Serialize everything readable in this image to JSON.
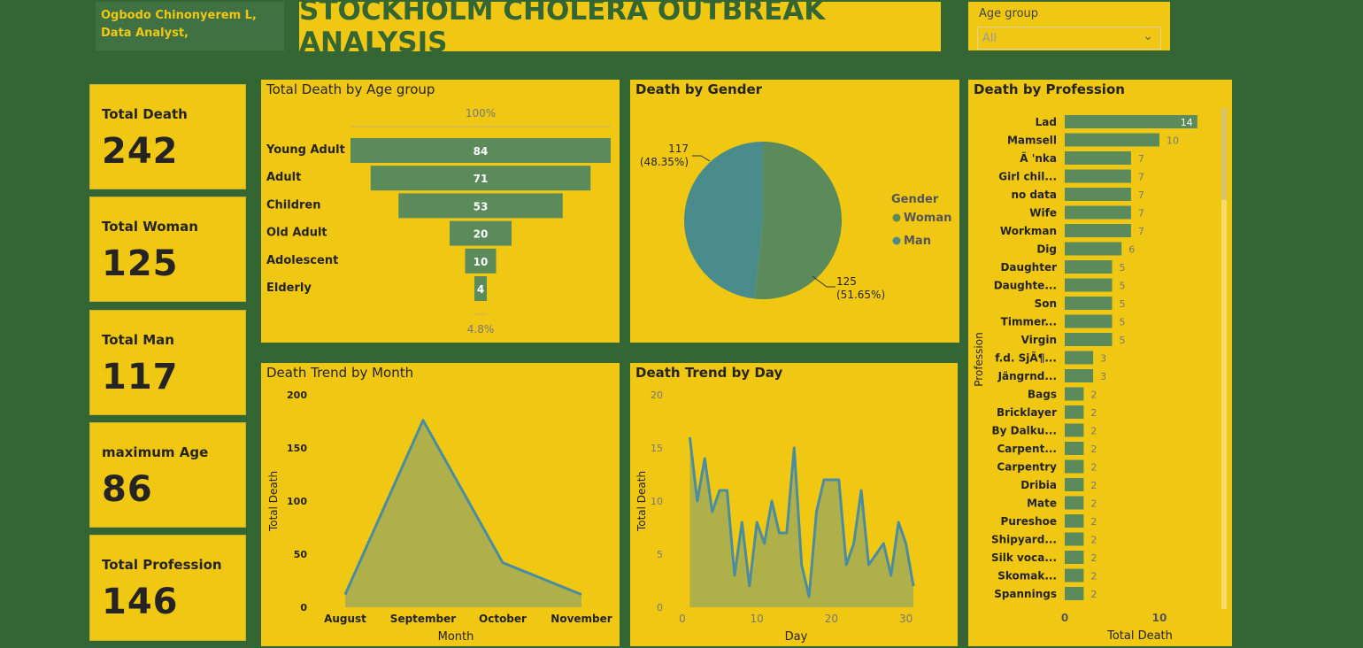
{
  "header": {
    "author_line1": "Ogbodo Chinonyerem L,",
    "author_line2": "Data Analyst,",
    "title": "STOCKHOLM CHOLERA OUTBREAK ANALYSIS"
  },
  "slicer": {
    "label": "Age group",
    "value": "All"
  },
  "cards": [
    {
      "label": "Total Death",
      "value": "242"
    },
    {
      "label": "Total Woman",
      "value": "125"
    },
    {
      "label": "Total Man",
      "value": "117"
    },
    {
      "label": "maximum Age",
      "value": "86"
    },
    {
      "label": "Total Profession",
      "value": "146"
    }
  ],
  "colors": {
    "background": "#336633",
    "panel": "#F0C814",
    "bar": "#5B8A5B",
    "man": "#4A8C8C",
    "area_fill": "#B0B04A",
    "line": "#4A8CA0"
  },
  "chart_data": [
    {
      "type": "funnel",
      "title": "Total Death by Age group",
      "top_label": "100%",
      "bottom_label": "4.8%",
      "categories": [
        "Young Adult",
        "Adult",
        "Children",
        "Old Adult",
        "Adolescent",
        "Elderly"
      ],
      "values": [
        84,
        71,
        53,
        20,
        10,
        4
      ]
    },
    {
      "type": "pie",
      "title": "Death by Gender",
      "legend_title": "Gender",
      "legend_position": "right",
      "slices": [
        {
          "name": "Woman",
          "value": 125,
          "label_value": "125",
          "label_pct": "(51.65%)"
        },
        {
          "name": "Man",
          "value": 117,
          "label_value": "117",
          "label_pct": "(48.35%)"
        }
      ]
    },
    {
      "type": "area",
      "title": "Death Trend by Month",
      "xlabel": "Month",
      "ylabel": "Total Death",
      "categories": [
        "August",
        "September",
        "October",
        "November"
      ],
      "values": [
        12,
        176,
        42,
        12
      ],
      "ylim": [
        0,
        200
      ],
      "yticks": [
        "0",
        "50",
        "100",
        "150",
        "200"
      ]
    },
    {
      "type": "area",
      "title": "Death Trend by Day",
      "xlabel": "Day",
      "ylabel": "Total Death",
      "x": [
        1,
        2,
        3,
        4,
        5,
        6,
        7,
        8,
        9,
        10,
        11,
        12,
        13,
        14,
        15,
        16,
        17,
        18,
        19,
        20,
        21,
        22,
        23,
        24,
        25,
        26,
        27,
        28,
        29,
        30,
        31
      ],
      "values": [
        16,
        10,
        14,
        9,
        11,
        11,
        3,
        8,
        2,
        8,
        6,
        10,
        7,
        7,
        15,
        4,
        1,
        9,
        12,
        12,
        12,
        4,
        6,
        11,
        4,
        5,
        6,
        3,
        8,
        6,
        2
      ],
      "xlim": [
        0,
        32
      ],
      "ylim": [
        0,
        20
      ],
      "xticks": [
        "0",
        "10",
        "20",
        "30"
      ],
      "yticks": [
        "0",
        "5",
        "10",
        "15",
        "20"
      ]
    },
    {
      "type": "bar",
      "orientation": "horizontal",
      "title": "Death by Profession",
      "xlabel": "Total Death",
      "ylabel": "Profession",
      "categories": [
        "Lad",
        "Mamsell",
        "Ã 'nka",
        "Girl chil...",
        "no data",
        "Wife",
        "Workman",
        "Dig",
        "Daughter",
        "Daughte...",
        "Son",
        "Timmer...",
        "Virgin",
        "f.d. SjÃ¶...",
        "Jängrnd...",
        "Bags",
        "Bricklayer",
        "By Dalku...",
        "Carpent...",
        "Carpentry",
        "Dribia",
        "Mate",
        "Pureshoe",
        "Shipyard...",
        "Silk voca...",
        "Skomak...",
        "Spannings"
      ],
      "values": [
        14,
        10,
        7,
        7,
        7,
        7,
        7,
        6,
        5,
        5,
        5,
        5,
        5,
        3,
        3,
        2,
        2,
        2,
        2,
        2,
        2,
        2,
        2,
        2,
        2,
        2,
        2
      ],
      "xticks": [
        "0",
        "10"
      ]
    }
  ]
}
